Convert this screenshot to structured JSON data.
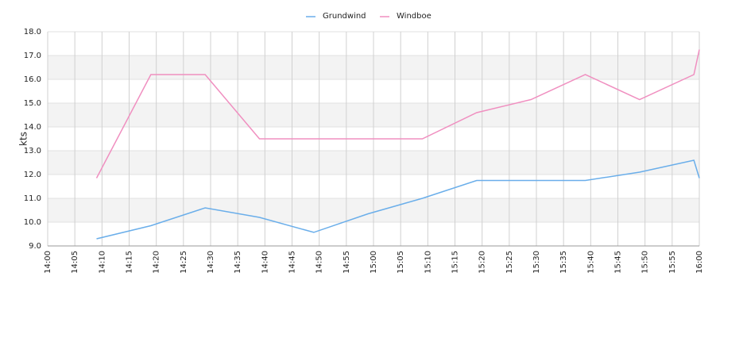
{
  "chart_data": {
    "type": "line",
    "y_label": "kts",
    "x": [
      "14:09",
      "14:19",
      "14:29",
      "14:39",
      "14:49",
      "14:59",
      "15:09",
      "15:19",
      "15:29",
      "15:39",
      "15:49",
      "15:59",
      "16:00"
    ],
    "series": [
      {
        "name": "Grundwind",
        "color": "#6aaeea",
        "values": [
          9.3,
          9.85,
          10.6,
          10.2,
          9.57,
          10.35,
          11.0,
          11.75,
          11.75,
          11.75,
          12.1,
          12.6,
          11.85
        ]
      },
      {
        "name": "Windboe",
        "color": "#f08fc0",
        "values": [
          11.85,
          16.2,
          16.2,
          13.5,
          13.5,
          13.5,
          13.5,
          14.6,
          15.15,
          16.2,
          15.15,
          16.2,
          17.25
        ]
      }
    ],
    "xlim": [
      "14:00",
      "16:00"
    ],
    "xticks": [
      "14:00",
      "14:05",
      "14:10",
      "14:15",
      "14:20",
      "14:25",
      "14:30",
      "14:35",
      "14:40",
      "14:45",
      "14:50",
      "14:55",
      "15:00",
      "15:05",
      "15:10",
      "15:15",
      "15:20",
      "15:25",
      "15:30",
      "15:35",
      "15:40",
      "15:45",
      "15:50",
      "15:55",
      "16:00"
    ],
    "ylim": [
      9,
      18
    ],
    "yticks": [
      {
        "value": 9,
        "label": "9.0"
      },
      {
        "value": 10,
        "label": "10.0"
      },
      {
        "value": 11,
        "label": "11.0"
      },
      {
        "value": 12,
        "label": "12.0"
      },
      {
        "value": 13,
        "label": "13.0"
      },
      {
        "value": 14,
        "label": "14.0"
      },
      {
        "value": 15,
        "label": "15.0"
      },
      {
        "value": 16,
        "label": "16.0"
      },
      {
        "value": 17,
        "label": "17.0"
      },
      {
        "value": 18,
        "label": "18.0"
      }
    ],
    "grid": true,
    "bands": true,
    "legend": "top"
  }
}
